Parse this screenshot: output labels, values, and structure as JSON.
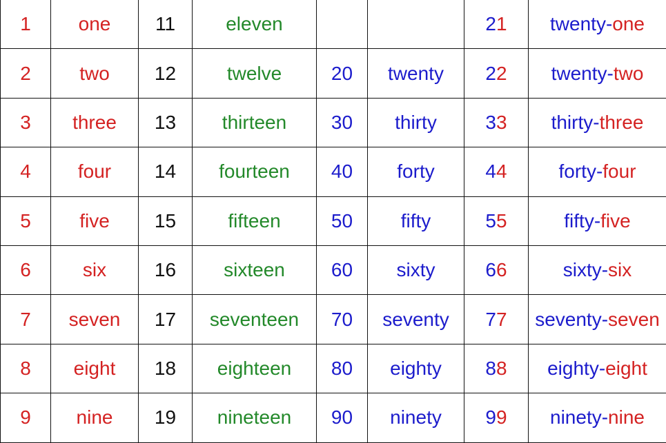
{
  "colors": {
    "ones": "#d42222",
    "teens": "#23892a",
    "tens": "#1c1ccc",
    "teen_numbers": "#111111"
  },
  "rows": [
    {
      "n": "1",
      "word": "one",
      "teen_n": "11",
      "teen_word": "eleven",
      "tens_n": "",
      "tens_word": "",
      "c_a": "2",
      "c_b": "1",
      "cw_a": "twenty-",
      "cw_b": "one"
    },
    {
      "n": "2",
      "word": "two",
      "teen_n": "12",
      "teen_word": "twelve",
      "tens_n": "20",
      "tens_word": "twenty",
      "c_a": "2",
      "c_b": "2",
      "cw_a": "twenty-",
      "cw_b": "two"
    },
    {
      "n": "3",
      "word": "three",
      "teen_n": "13",
      "teen_word": "thirteen",
      "tens_n": "30",
      "tens_word": "thirty",
      "c_a": "3",
      "c_b": "3",
      "cw_a": "thirty-",
      "cw_b": "three"
    },
    {
      "n": "4",
      "word": "four",
      "teen_n": "14",
      "teen_word": "fourteen",
      "tens_n": "40",
      "tens_word": "forty",
      "c_a": "4",
      "c_b": "4",
      "cw_a": "forty-",
      "cw_b": "four"
    },
    {
      "n": "5",
      "word": "five",
      "teen_n": "15",
      "teen_word": "fifteen",
      "tens_n": "50",
      "tens_word": "fifty",
      "c_a": "5",
      "c_b": "5",
      "cw_a": "fifty-",
      "cw_b": "five"
    },
    {
      "n": "6",
      "word": "six",
      "teen_n": "16",
      "teen_word": "sixteen",
      "tens_n": "60",
      "tens_word": "sixty",
      "c_a": "6",
      "c_b": "6",
      "cw_a": "sixty-",
      "cw_b": "six"
    },
    {
      "n": "7",
      "word": "seven",
      "teen_n": "17",
      "teen_word": "seventeen",
      "tens_n": "70",
      "tens_word": "seventy",
      "c_a": "7",
      "c_b": "7",
      "cw_a": "seventy-",
      "cw_b": "seven"
    },
    {
      "n": "8",
      "word": "eight",
      "teen_n": "18",
      "teen_word": "eighteen",
      "tens_n": "80",
      "tens_word": "eighty",
      "c_a": "8",
      "c_b": "8",
      "cw_a": "eighty-",
      "cw_b": "eight"
    },
    {
      "n": "9",
      "word": "nine",
      "teen_n": "19",
      "teen_word": "nineteen",
      "tens_n": "90",
      "tens_word": "ninety",
      "c_a": "9",
      "c_b": "9",
      "cw_a": "ninety-",
      "cw_b": "nine"
    }
  ]
}
